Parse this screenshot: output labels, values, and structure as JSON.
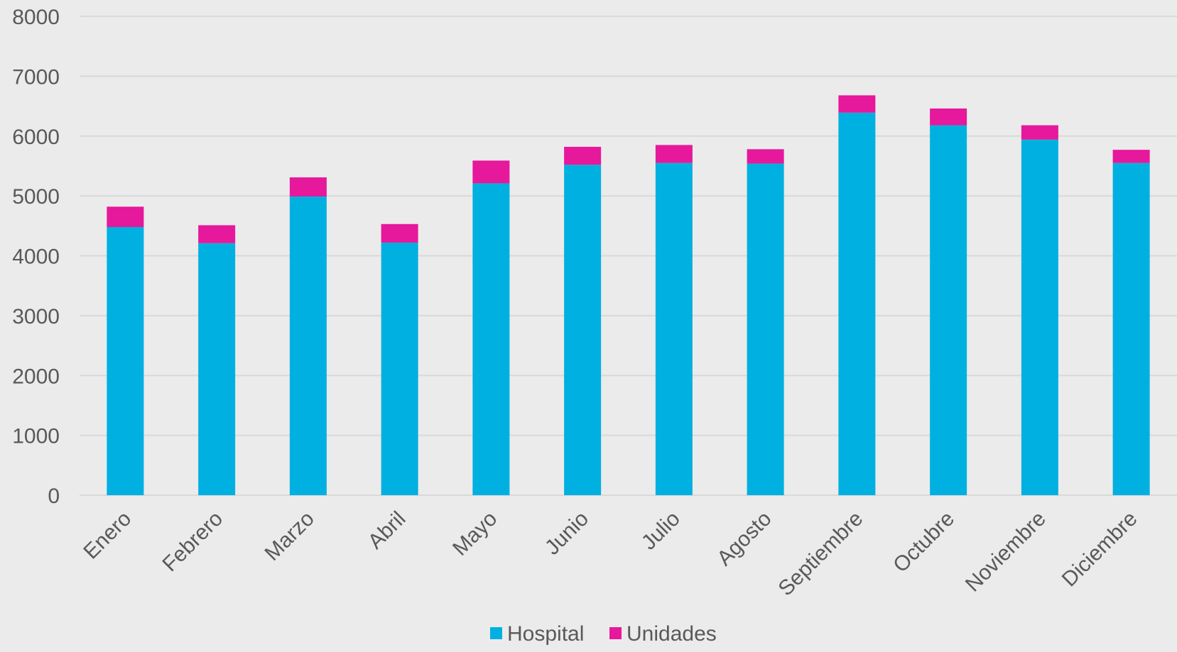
{
  "chart_data": {
    "type": "bar",
    "stacked": true,
    "categories": [
      "Enero",
      "Febrero",
      "Marzo",
      "Abril",
      "Mayo",
      "Junio",
      "Julio",
      "Agosto",
      "Septiembre",
      "Octubre",
      "Noviembre",
      "Diciembre"
    ],
    "series": [
      {
        "name": "Hospital",
        "color": "#00b0e0",
        "values": [
          4480,
          4210,
          4990,
          4220,
          5210,
          5520,
          5550,
          5540,
          6390,
          6180,
          5940,
          5550
        ]
      },
      {
        "name": "Unidades",
        "color": "#e6189b",
        "values": [
          340,
          300,
          320,
          310,
          380,
          300,
          300,
          240,
          290,
          280,
          240,
          220
        ]
      }
    ],
    "ylim": [
      0,
      8000
    ],
    "yticks": [
      0,
      1000,
      2000,
      3000,
      4000,
      5000,
      6000,
      7000,
      8000
    ],
    "grid": true,
    "legend": "bottom-center",
    "title": "",
    "xlabel": "",
    "ylabel": ""
  }
}
